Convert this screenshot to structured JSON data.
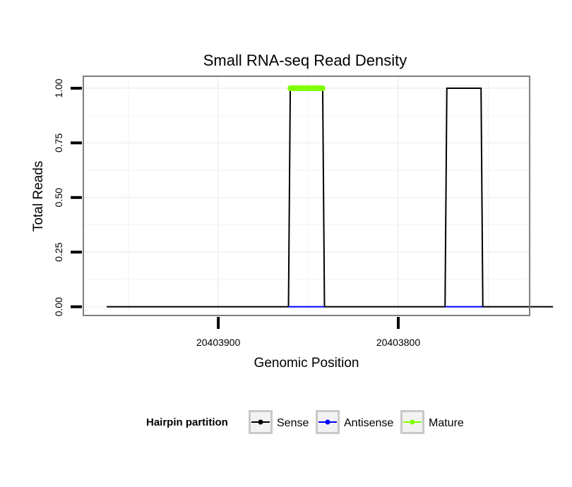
{
  "chart_data": {
    "type": "line",
    "title": "Small RNA-seq Read Density",
    "xlabel": "Genomic Position",
    "ylabel": "Total Reads",
    "x_reversed": true,
    "xlim": [
      20403975,
      20403727
    ],
    "ylim": [
      -0.04,
      1.055
    ],
    "x_ticks": [
      20403900,
      20403800
    ],
    "x_tick_labels": [
      "20403900",
      "20403800"
    ],
    "y_ticks": [
      0,
      0.25,
      0.5,
      0.75,
      1
    ],
    "y_tick_labels": [
      "0.00",
      "0.25",
      "0.50",
      "0.75",
      "1.00"
    ],
    "grid": true,
    "series": [
      {
        "name": "Sense",
        "color": "#000000",
        "x": [
          20403962,
          20403861,
          20403860,
          20403842,
          20403841,
          20403774,
          20403773,
          20403754,
          20403753,
          20403714
        ],
        "y": [
          0,
          0,
          1,
          1,
          0,
          0,
          1,
          1,
          0,
          0
        ]
      },
      {
        "name": "Antisense",
        "color": "#0000ff",
        "x": [
          20403861,
          20403841,
          20403774,
          20403753
        ],
        "y": [
          0,
          0,
          0,
          0
        ],
        "segments": [
          [
            0,
            1
          ],
          [
            2,
            3
          ]
        ]
      },
      {
        "name": "Mature",
        "color": "#7fff00",
        "x": [
          20403860,
          20403842
        ],
        "y": [
          1,
          1
        ],
        "thick": true
      }
    ],
    "legend": {
      "title": "Hairpin partition",
      "position": "bottom",
      "entries": [
        {
          "label": "Sense",
          "color": "#000000"
        },
        {
          "label": "Antisense",
          "color": "#0000ff"
        },
        {
          "label": "Mature",
          "color": "#7fff00"
        }
      ]
    }
  }
}
